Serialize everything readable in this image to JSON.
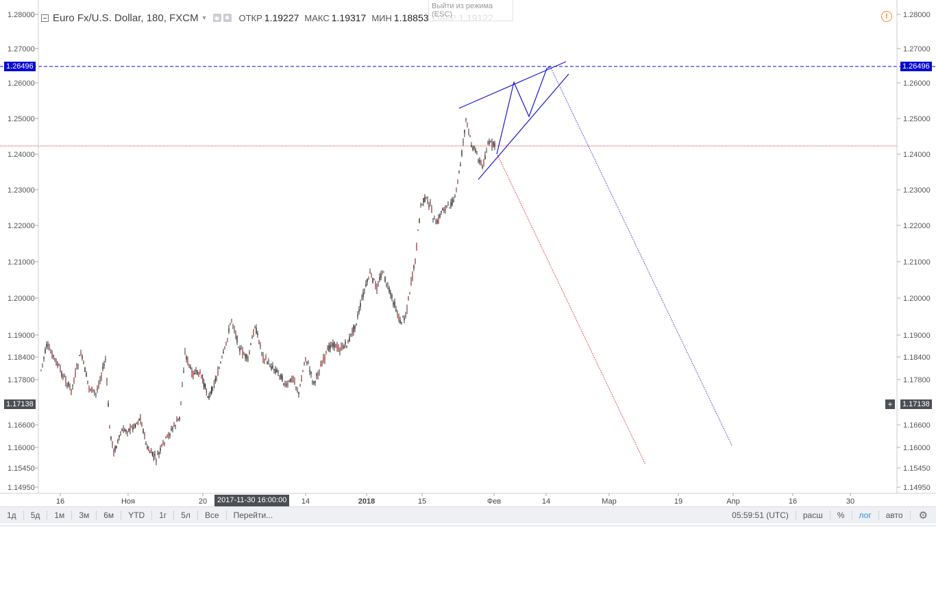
{
  "symbol": {
    "name": "Euro Fx/U.S. Dollar, 180, FXCM",
    "open_label": "ОТКР",
    "open": "1.19227",
    "high_label": "МАКС",
    "high": "1.19317",
    "low_label": "МИН",
    "low": "1.18853",
    "close_label": "ЗАКР",
    "close": "1.19122"
  },
  "fullscreen_hint": "Выйти из режима",
  "fullscreen_hint_key": "(ESC)",
  "price_axis": {
    "ticks": [
      "1.28000",
      "1.27000",
      "1.26000",
      "1.25000",
      "1.24000",
      "1.23000",
      "1.22000",
      "1.21000",
      "1.20000",
      "1.19000",
      "1.18400",
      "1.17800",
      "1.16600",
      "1.16000",
      "1.15450",
      "1.14950"
    ],
    "ticks_values": [
      1.28,
      1.27,
      1.26,
      1.25,
      1.24,
      1.23,
      1.22,
      1.21,
      1.2,
      1.19,
      1.184,
      1.178,
      1.166,
      1.16,
      1.1545,
      1.1495
    ],
    "marker_level": "1.26496",
    "current_price": "1.17138",
    "plus": "+"
  },
  "time_axis": {
    "labels": [
      "16",
      "Ноя",
      "20",
      "14",
      "2018",
      "15",
      "Фев",
      "14",
      "Мар",
      "19",
      "Апр",
      "16",
      "30"
    ],
    "crosshair_time": "2017-11-30 16:00:00"
  },
  "toolbar": {
    "ranges": [
      "1д",
      "5д",
      "1м",
      "3м",
      "6м",
      "YTD",
      "1г",
      "5л",
      "Все"
    ],
    "goto": "Перейти...",
    "clock": "05:59:51 (UTC)",
    "ext": "расш",
    "percent": "%",
    "log": "лог",
    "auto": "авто"
  },
  "colors": {
    "trend_lines": "#1717d6",
    "horizontal_dashed": "#0a0ad4",
    "red_dotted": "#e03030",
    "blue_dotted": "#3a3ad0",
    "candle": "#000000",
    "candle_down": "#c01010"
  },
  "icons": [
    "collapse-icon",
    "settings-mini-icon",
    "warning-icon",
    "gear-icon"
  ]
}
